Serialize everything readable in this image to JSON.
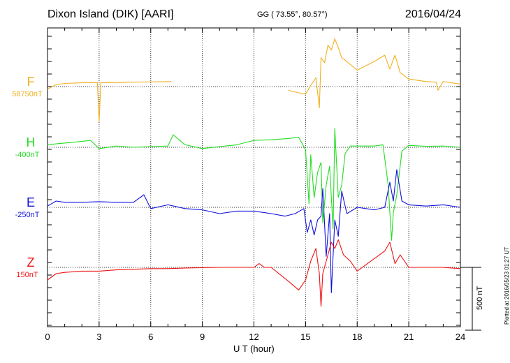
{
  "header": {
    "station": "Dixon Island (DIK)  [AARI]",
    "coords": "GG ( 73.55°,  80.57°)",
    "date": "2016/04/24"
  },
  "footer": {
    "plotted": "Plotted at 2016/05/23 01:27 UT",
    "scale_label": "500 nT"
  },
  "chart_data": {
    "type": "line",
    "title": "Dixon Island (DIK)  [AARI]",
    "xlabel": "U T (hour)",
    "xlim": [
      0,
      24
    ],
    "xticks": [
      "0",
      "3",
      "6",
      "9",
      "12",
      "15",
      "18",
      "21",
      "24"
    ],
    "units": "nT",
    "scale_bar_nT": 500,
    "grid": true,
    "series": [
      {
        "name": "F",
        "baseline_label": "58750nT",
        "baseline": 58750,
        "color": "#f0b020",
        "x": [
          0,
          0.5,
          1,
          2,
          2.9,
          3.0,
          3.1,
          4,
          5,
          6,
          7.2,
          null,
          14.0,
          14.6,
          15.0,
          15.3,
          15.6,
          15.8,
          15.9,
          16.1,
          16.3,
          16.5,
          16.7,
          16.9,
          17.1,
          17.3,
          18,
          19,
          19.6,
          19.9,
          20.2,
          20.5,
          21,
          22,
          22.6,
          22.7,
          23,
          24
        ],
        "values": [
          58730,
          58765,
          58775,
          58780,
          58782,
          58470,
          58780,
          58782,
          58785,
          58787,
          58790,
          null,
          58720,
          58700,
          58690,
          58760,
          58820,
          58580,
          58980,
          58940,
          59080,
          59040,
          59130,
          59060,
          58980,
          58960,
          58880,
          58950,
          59000,
          58890,
          59000,
          58860,
          58810,
          58790,
          58785,
          58720,
          58790,
          58770
        ]
      },
      {
        "name": "H",
        "baseline_label": "-400nT",
        "baseline": -400,
        "color": "#22dd22",
        "x": [
          0,
          0.7,
          1.5,
          2.5,
          3.0,
          4,
          5,
          6,
          7,
          7.3,
          8,
          9,
          10,
          11,
          12,
          13,
          14,
          14.6,
          15.0,
          15.2,
          15.3,
          15.5,
          15.7,
          15.9,
          16.0,
          16.2,
          16.4,
          16.6,
          16.7,
          16.9,
          17.1,
          17.3,
          17.6,
          18,
          19,
          19.5,
          19.8,
          20.0,
          20.1,
          20.3,
          20.6,
          21,
          22,
          23,
          24
        ],
        "values": [
          -380,
          -370,
          -360,
          -345,
          -410,
          -390,
          -400,
          -395,
          -390,
          -300,
          -380,
          -410,
          -395,
          -380,
          -345,
          -340,
          -330,
          -320,
          -420,
          -850,
          -460,
          -800,
          -600,
          -520,
          -1000,
          -700,
          -550,
          -1050,
          -250,
          -800,
          -700,
          -450,
          -390,
          -390,
          -390,
          -380,
          -700,
          -1140,
          -920,
          -780,
          -430,
          -385,
          -392,
          -390,
          -400
        ]
      },
      {
        "name": "E",
        "baseline_label": "-250nT",
        "baseline": -250,
        "color": "#1111dd",
        "x": [
          0,
          0.5,
          1,
          2,
          3,
          4,
          5,
          5.6,
          6,
          7,
          8,
          9,
          10,
          11,
          12,
          13,
          13.8,
          14.4,
          14.9,
          15.1,
          15.3,
          15.5,
          15.7,
          15.9,
          16.0,
          16.2,
          16.4,
          16.5,
          16.7,
          16.9,
          17.1,
          17.4,
          18,
          19,
          19.6,
          19.9,
          20.1,
          20.3,
          20.6,
          21,
          22,
          23,
          24
        ],
        "values": [
          -240,
          -200,
          -210,
          -210,
          -205,
          -210,
          -210,
          -150,
          -260,
          -230,
          -260,
          -270,
          -300,
          -280,
          -280,
          -300,
          -320,
          -300,
          -260,
          -450,
          -350,
          -470,
          -350,
          -320,
          -100,
          -640,
          -300,
          -930,
          -350,
          -480,
          -120,
          -300,
          -250,
          -270,
          -250,
          -50,
          -200,
          50,
          -200,
          -230,
          -240,
          -230,
          -250
        ]
      },
      {
        "name": "Z",
        "baseline_label": "150nT",
        "baseline": 150,
        "color": "#ee1111",
        "x": [
          0,
          0.5,
          1,
          2,
          3,
          4,
          5,
          6,
          7,
          8,
          9,
          10,
          11,
          12,
          12.3,
          12.6,
          13,
          14,
          14.6,
          15.0,
          15.3,
          15.6,
          15.8,
          15.9,
          16.0,
          16.3,
          16.5,
          16.7,
          16.9,
          17.2,
          17.6,
          18,
          18.6,
          19.2,
          19.6,
          19.9,
          20.2,
          20.5,
          21,
          22,
          23,
          24
        ],
        "values": [
          50,
          100,
          110,
          120,
          120,
          130,
          135,
          140,
          140,
          145,
          148,
          150,
          150,
          150,
          180,
          150,
          150,
          40,
          -30,
          50,
          200,
          300,
          100,
          -160,
          100,
          250,
          350,
          300,
          370,
          250,
          200,
          120,
          180,
          240,
          280,
          350,
          180,
          250,
          150,
          150,
          150,
          140
        ]
      }
    ]
  }
}
